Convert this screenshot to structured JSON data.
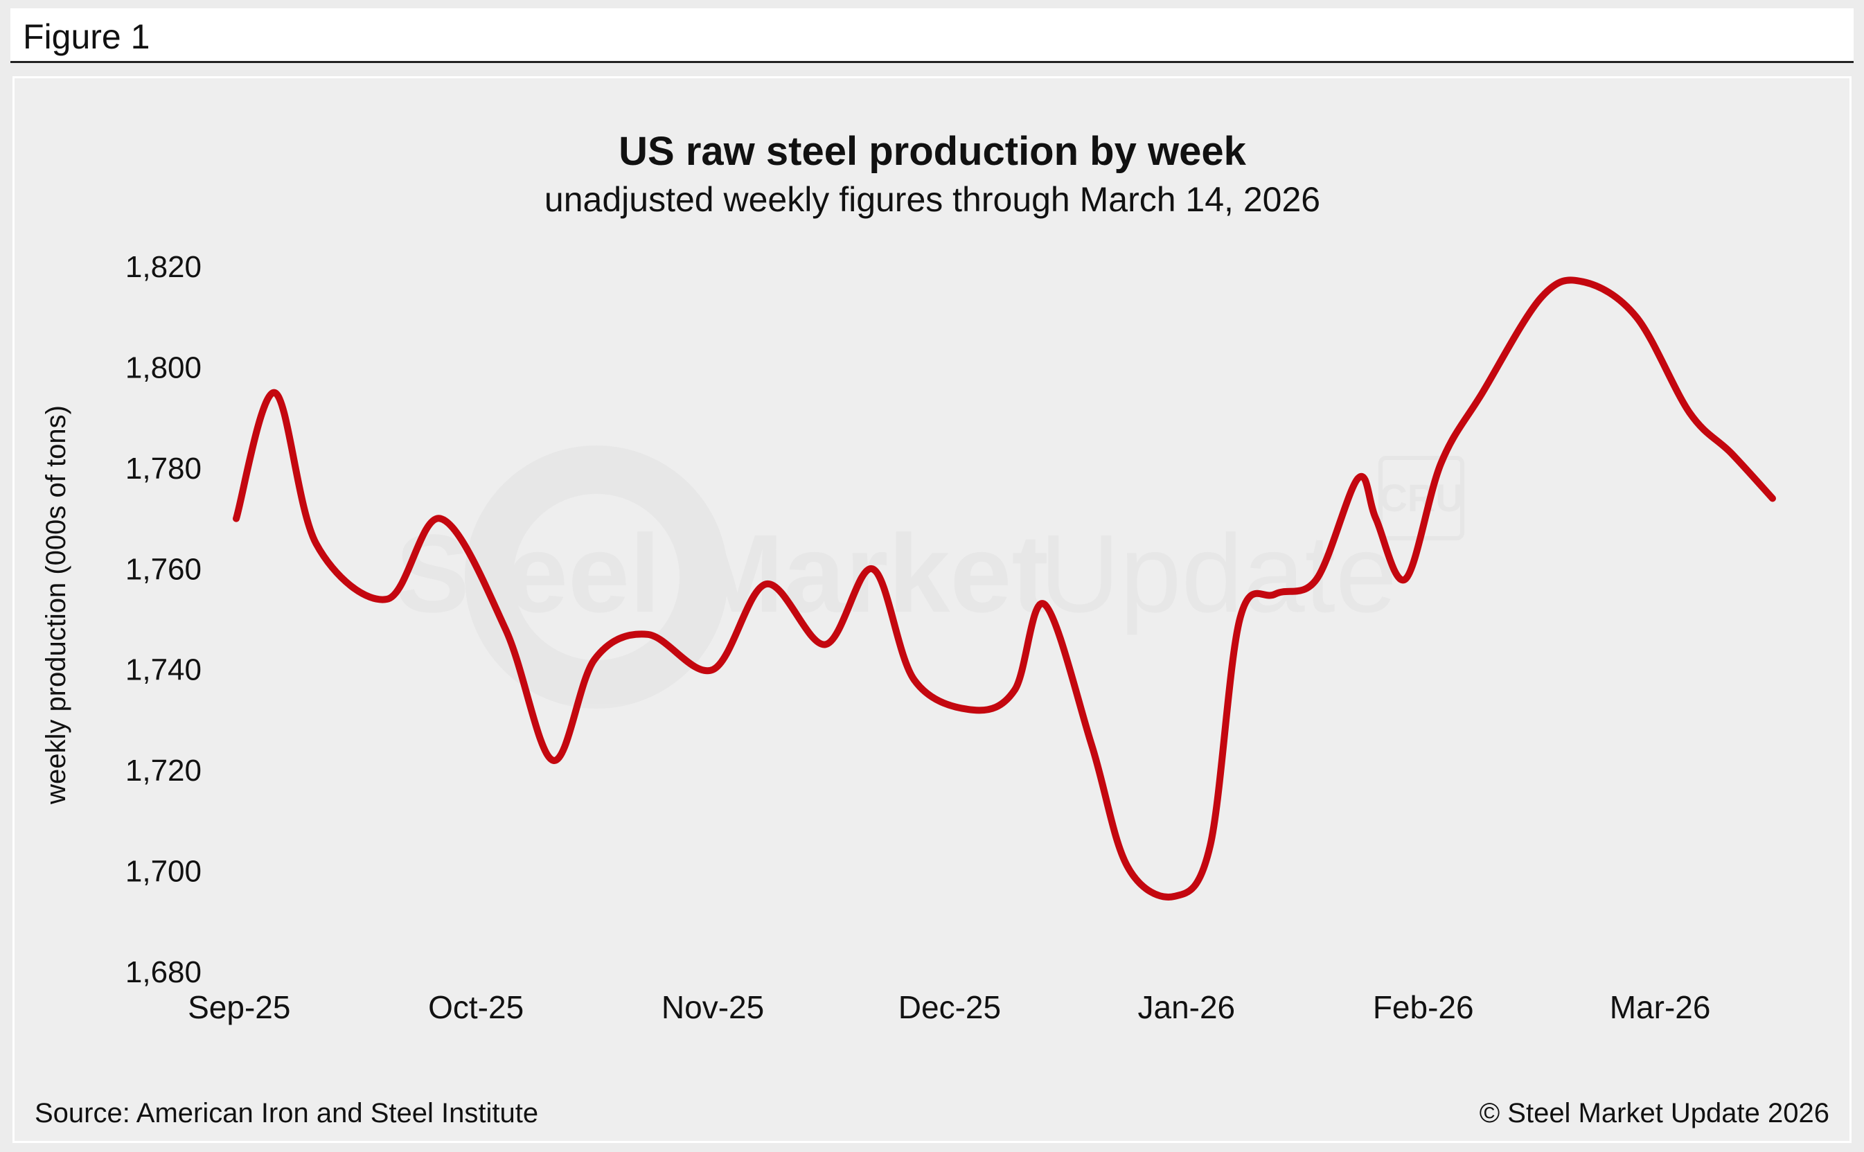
{
  "figure_label": "Figure 1",
  "footer": {
    "source": "Source: American Iron and Steel Institute",
    "copyright": "© Steel Market Update 2026"
  },
  "watermark": {
    "text_bold": "Steel Market",
    "text_light": "Update",
    "badge": "CRU"
  },
  "colors": {
    "line": "#c4070f",
    "background": "#eeeeee",
    "text": "#111111"
  },
  "chart_data": {
    "type": "line",
    "title": "US raw steel production by week",
    "subtitle": "unadjusted weekly figures through March 14, 2026",
    "xlabel": "",
    "ylabel": "weekly production (000s of tons)",
    "ylim": [
      1680,
      1820
    ],
    "yticks": [
      1680,
      1700,
      1720,
      1740,
      1760,
      1780,
      1800,
      1820
    ],
    "ytick_labels": [
      "1,680",
      "1,700",
      "1,720",
      "1,740",
      "1,760",
      "1,780",
      "1,800",
      "1,820"
    ],
    "xticks": [
      0,
      4,
      8,
      12,
      16,
      20,
      24
    ],
    "xtick_labels": [
      "Sep-25",
      "Oct-25",
      "Nov-25",
      "Dec-25",
      "Jan-26",
      "Feb-26",
      "Mar-26"
    ],
    "grid": false,
    "legend": "none",
    "series": [
      {
        "name": "US raw steel production",
        "x": [
          -0.05,
          0.6,
          1.3,
          2.5,
          3.4,
          4.5,
          5.3,
          6.0,
          6.9,
          8.0,
          8.9,
          9.9,
          10.7,
          11.4,
          12.4,
          13.1,
          13.6,
          14.4,
          15.0,
          15.8,
          16.4,
          16.9,
          17.5,
          18.2,
          18.9,
          19.2,
          19.7,
          20.3,
          21.0,
          22.0,
          22.7,
          23.6,
          24.5,
          25.2,
          25.9
        ],
        "values": [
          1770,
          1795,
          1765,
          1754,
          1770,
          1748,
          1722,
          1742,
          1747,
          1740,
          1757,
          1745,
          1760,
          1738,
          1732,
          1736,
          1753,
          1725,
          1701,
          1695,
          1705,
          1750,
          1755,
          1758,
          1778,
          1770,
          1758,
          1781,
          1795,
          1814,
          1817,
          1810,
          1791,
          1783,
          1774
        ]
      }
    ]
  }
}
